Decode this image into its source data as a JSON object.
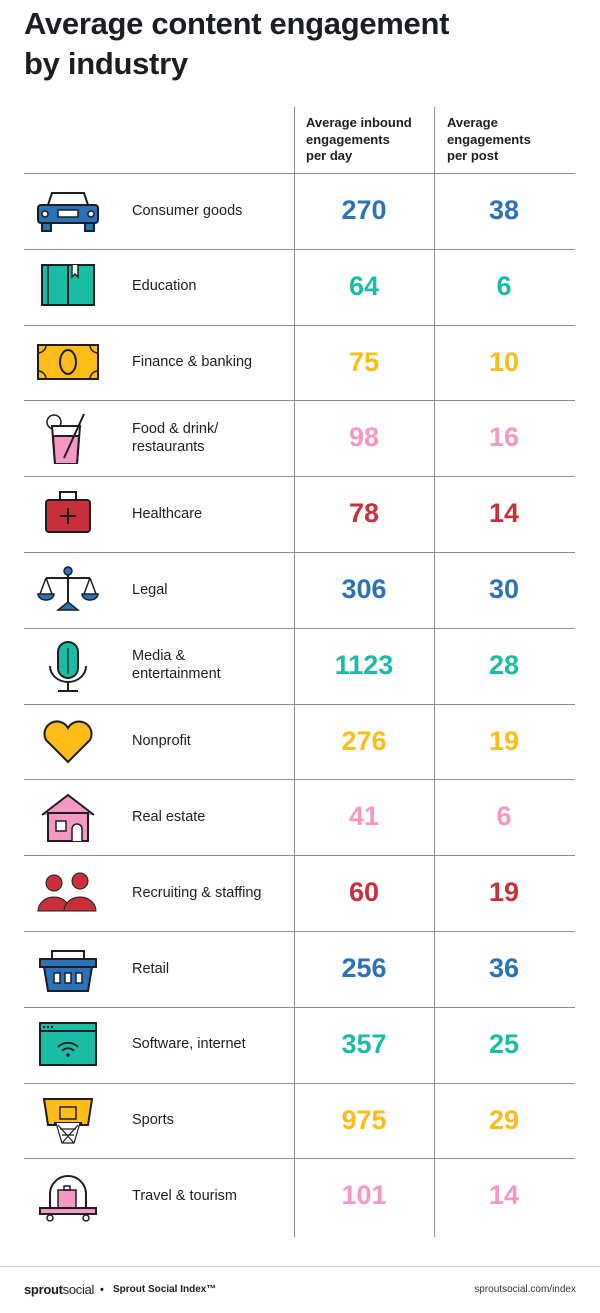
{
  "title_line1": "Average content engagement",
  "title_line2": "by industry",
  "columns": {
    "col1": [
      "Average inbound",
      "engagements",
      "per day"
    ],
    "col2": [
      "Average",
      "engagements",
      "per post"
    ]
  },
  "colors": {
    "blue": "#2b72b9",
    "teal": "#19bca4",
    "yellow": "#fdbc18",
    "pink": "#f797c3",
    "red": "#c8313a"
  },
  "rows": [
    {
      "label": [
        "Consumer goods"
      ],
      "per_day": "270",
      "per_post": "38",
      "color": "#2b72b9",
      "icon": "car-icon"
    },
    {
      "label": [
        "Education"
      ],
      "per_day": "64",
      "per_post": "6",
      "color": "#19bca4",
      "icon": "book-icon"
    },
    {
      "label": [
        "Finance & banking"
      ],
      "per_day": "75",
      "per_post": "10",
      "color": "#fdbc18",
      "icon": "banknote-icon"
    },
    {
      "label": [
        "Food & drink/",
        "restaurants"
      ],
      "per_day": "98",
      "per_post": "16",
      "color": "#f797c3",
      "icon": "drink-glass-icon"
    },
    {
      "label": [
        "Healthcare"
      ],
      "per_day": "78",
      "per_post": "14",
      "color": "#c8313a",
      "icon": "first-aid-kit-icon"
    },
    {
      "label": [
        "Legal"
      ],
      "per_day": "306",
      "per_post": "30",
      "color": "#2b72b9",
      "icon": "scales-icon"
    },
    {
      "label": [
        "Media &",
        "entertainment"
      ],
      "per_day": "1123",
      "per_post": "28",
      "color": "#19bca4",
      "icon": "microphone-icon"
    },
    {
      "label": [
        "Nonprofit"
      ],
      "per_day": "276",
      "per_post": "19",
      "color": "#fdbc18",
      "icon": "heart-icon"
    },
    {
      "label": [
        "Real estate"
      ],
      "per_day": "41",
      "per_post": "6",
      "color": "#f797c3",
      "icon": "house-icon"
    },
    {
      "label": [
        "Recruiting & staffing"
      ],
      "per_day": "60",
      "per_post": "19",
      "color": "#c8313a",
      "icon": "people-icon"
    },
    {
      "label": [
        "Retail"
      ],
      "per_day": "256",
      "per_post": "36",
      "color": "#2b72b9",
      "icon": "basket-icon"
    },
    {
      "label": [
        "Software, internet"
      ],
      "per_day": "357",
      "per_post": "25",
      "color": "#19bca4",
      "icon": "browser-wifi-icon"
    },
    {
      "label": [
        "Sports"
      ],
      "per_day": "975",
      "per_post": "29",
      "color": "#fdbc18",
      "icon": "basketball-hoop-icon"
    },
    {
      "label": [
        "Travel & tourism"
      ],
      "per_day": "101",
      "per_post": "14",
      "color": "#f797c3",
      "icon": "luggage-cart-icon"
    }
  ],
  "footer": {
    "brand_bold": "sprout",
    "brand_thin": "social",
    "separator": "•",
    "index": "Sprout Social Index™",
    "url": "sproutsocial.com/index"
  }
}
